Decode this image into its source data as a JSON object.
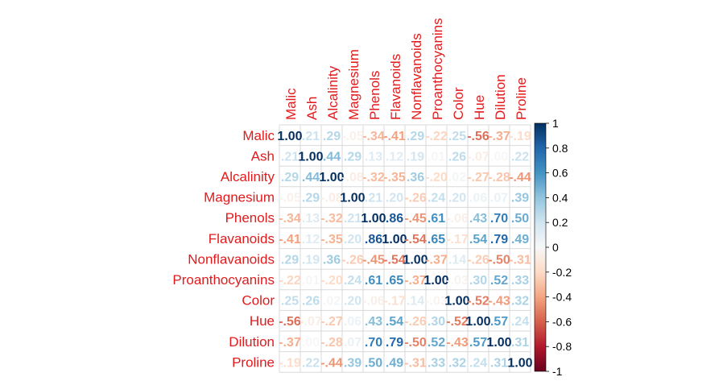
{
  "chart_data": {
    "type": "heatmap",
    "variables": [
      "Malic",
      "Ash",
      "Alcalinity",
      "Magnesium",
      "Phenols",
      "Flavanoids",
      "Nonflavanoids",
      "Proanthocyanins",
      "Color",
      "Hue",
      "Dilution",
      "Proline"
    ],
    "matrix": [
      [
        1.0,
        0.21,
        0.29,
        -0.05,
        -0.34,
        -0.41,
        0.29,
        -0.22,
        0.25,
        -0.56,
        -0.37,
        -0.19
      ],
      [
        0.21,
        1.0,
        0.44,
        0.29,
        0.13,
        0.12,
        0.19,
        0.01,
        0.26,
        -0.07,
        0.0,
        0.22
      ],
      [
        0.29,
        0.44,
        1.0,
        -0.08,
        -0.32,
        -0.35,
        0.36,
        -0.2,
        0.02,
        -0.27,
        -0.28,
        -0.44
      ],
      [
        -0.05,
        0.29,
        -0.08,
        1.0,
        0.21,
        0.2,
        -0.26,
        0.24,
        0.2,
        0.06,
        0.07,
        0.39
      ],
      [
        -0.34,
        0.13,
        -0.32,
        0.21,
        1.0,
        0.86,
        -0.45,
        0.61,
        -0.06,
        0.43,
        0.7,
        0.5
      ],
      [
        -0.41,
        0.12,
        -0.35,
        0.2,
        0.86,
        1.0,
        -0.54,
        0.65,
        -0.17,
        0.54,
        0.79,
        0.49
      ],
      [
        0.29,
        0.19,
        0.36,
        -0.26,
        -0.45,
        -0.54,
        1.0,
        -0.37,
        0.14,
        -0.26,
        -0.5,
        -0.31
      ],
      [
        -0.22,
        0.01,
        -0.2,
        0.24,
        0.61,
        0.65,
        -0.37,
        1.0,
        -0.03,
        0.3,
        0.52,
        0.33
      ],
      [
        0.25,
        0.26,
        0.02,
        0.2,
        -0.06,
        -0.17,
        0.14,
        -0.03,
        1.0,
        -0.52,
        -0.43,
        0.32
      ],
      [
        -0.56,
        -0.07,
        -0.27,
        0.06,
        0.43,
        0.54,
        -0.26,
        0.3,
        -0.52,
        1.0,
        0.57,
        0.24
      ],
      [
        -0.37,
        0.0,
        -0.28,
        0.07,
        0.7,
        0.79,
        -0.5,
        0.52,
        -0.43,
        0.57,
        1.0,
        0.31
      ],
      [
        -0.19,
        0.22,
        -0.44,
        0.39,
        0.5,
        0.49,
        -0.31,
        0.33,
        0.32,
        0.24,
        0.31,
        1.0
      ]
    ],
    "color_scale": {
      "min": -1,
      "max": 1,
      "ticks": [
        "1",
        "0.8",
        "0.6",
        "0.4",
        "0.2",
        "0",
        "-0.2",
        "-0.4",
        "-0.6",
        "-0.8",
        "-1"
      ],
      "negative_color": "#67001F",
      "neutral_color": "#F7F7F7",
      "positive_color": "#053061"
    },
    "label_color": "#E31A1C",
    "grid": true
  }
}
